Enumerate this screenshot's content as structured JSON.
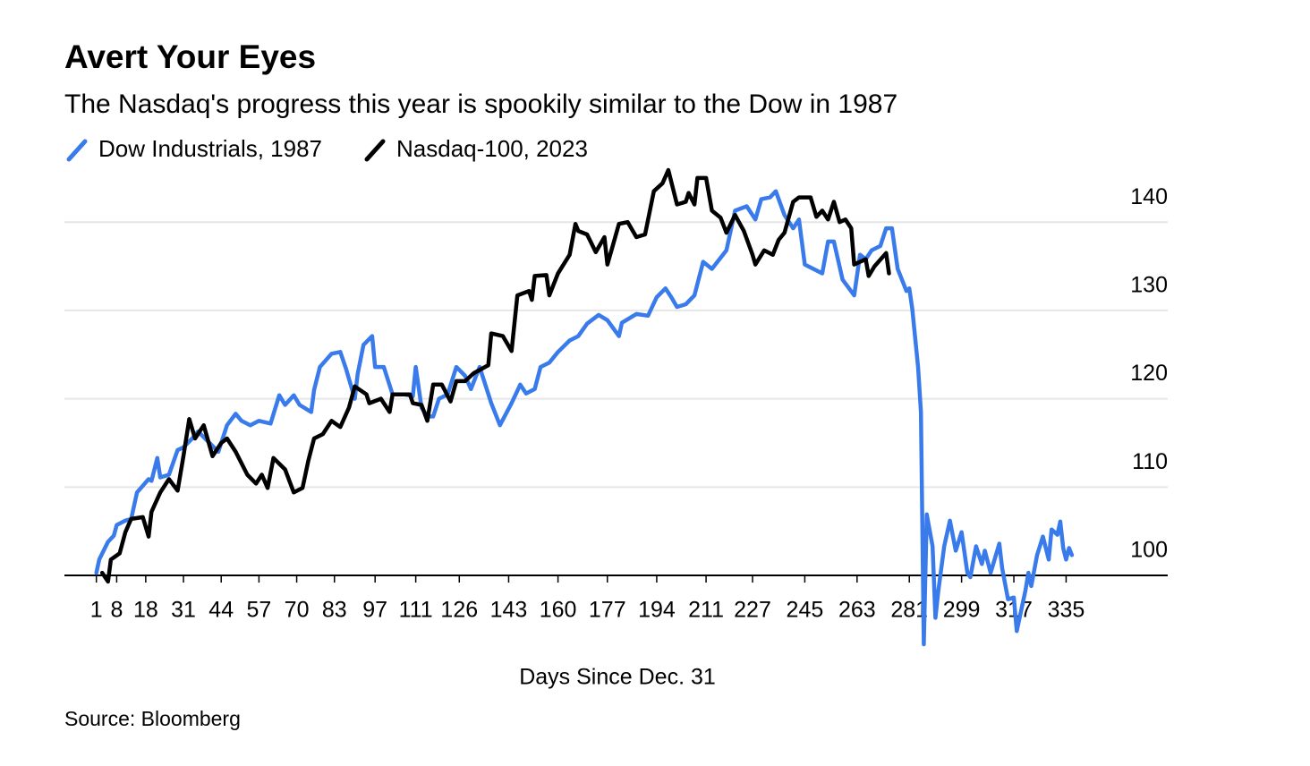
{
  "chart_data": {
    "type": "line",
    "title": "Avert Your Eyes",
    "subtitle": "The Nasdaq's progress this year is spookily similar to the Dow in 1987",
    "x_label": "Days Since Dec. 31",
    "source": "Source: Bloomberg",
    "xlim": [
      -10,
      370
    ],
    "xticks": [
      1,
      8,
      18,
      31,
      44,
      57,
      70,
      83,
      97,
      111,
      126,
      143,
      160,
      177,
      194,
      211,
      227,
      245,
      263,
      281,
      299,
      317,
      335
    ],
    "ylim": [
      92,
      146
    ],
    "yticks": [
      100,
      110,
      120,
      130,
      140
    ],
    "grid": true,
    "series": [
      {
        "name": "Dow Industrials, 1987",
        "color": "#3a7bec",
        "x": [
          1,
          2,
          5,
          7,
          8,
          11,
          13,
          15,
          19,
          20,
          22,
          23,
          26,
          29,
          31,
          34,
          36,
          40,
          43,
          46,
          49,
          51,
          54,
          57,
          61,
          64,
          66,
          69,
          71,
          75,
          76,
          78,
          82,
          85,
          87,
          90,
          91,
          93,
          96,
          97,
          100,
          103,
          107,
          110,
          111,
          113,
          115,
          117,
          119,
          122,
          125,
          128,
          130,
          133,
          134,
          137,
          140,
          144,
          147,
          149,
          152,
          154,
          157,
          160,
          164,
          167,
          170,
          174,
          177,
          181,
          182,
          187,
          191,
          194,
          197,
          199,
          201,
          204,
          207,
          210,
          213,
          218,
          221,
          225,
          228,
          230,
          233,
          235,
          238,
          241,
          243,
          245,
          251,
          253,
          255,
          258,
          262,
          264,
          266,
          268,
          271,
          273,
          275,
          277,
          280,
          281,
          282,
          284,
          285,
          286,
          287,
          289,
          290,
          291,
          293,
          295,
          297,
          299,
          301,
          302,
          304,
          306,
          307,
          309,
          312,
          313,
          315,
          317,
          318,
          321,
          322,
          323,
          325,
          327,
          329,
          330,
          332,
          333,
          334,
          335,
          336,
          337
        ],
        "values": [
          100.3,
          101.8,
          103.8,
          104.5,
          105.7,
          106.2,
          106.4,
          109.4,
          110.9,
          110.7,
          113.3,
          111.1,
          111.4,
          114.2,
          114.5,
          115.5,
          116.3,
          115,
          114,
          117,
          118.3,
          117.5,
          117,
          117.5,
          117.2,
          120.4,
          119.3,
          120.4,
          119.3,
          118.5,
          121,
          123.6,
          125.1,
          125.3,
          123.4,
          120,
          122.8,
          126.1,
          127.1,
          123.6,
          123.6,
          120.5,
          120.5,
          120.3,
          123.6,
          119,
          118,
          118,
          120,
          120.5,
          123.6,
          122.6,
          121.1,
          123.6,
          122.6,
          119.5,
          117,
          119.5,
          121.6,
          120.6,
          121.1,
          123.6,
          124.1,
          125.3,
          126.6,
          127.1,
          128.5,
          129.5,
          128.9,
          127.1,
          128.6,
          129.6,
          129.4,
          131.5,
          132.5,
          131.5,
          130.4,
          130.7,
          131.7,
          135.5,
          134.7,
          136.8,
          141.3,
          141.8,
          140.3,
          142.6,
          142.8,
          143.5,
          140.8,
          139.3,
          140.3,
          135.2,
          134.2,
          137.8,
          137.8,
          133.5,
          131.7,
          136.3,
          135.8,
          136.8,
          137.3,
          139.3,
          139.3,
          134.7,
          132.2,
          132.5,
          130.2,
          123.6,
          118.5,
          92.2,
          106.9,
          103.3,
          95.2,
          98.3,
          103.3,
          106.2,
          102.8,
          104.9,
          100.3,
          99.8,
          103.3,
          101.3,
          102.8,
          100.3,
          103.6,
          100.8,
          97.3,
          97.5,
          93.7,
          98.3,
          100.3,
          98.8,
          102.3,
          104.4,
          101.8,
          105.2,
          104.6,
          106.1,
          103.1,
          101.8,
          103.1,
          102.3
        ]
      },
      {
        "name": "Nasdaq-100, 2023",
        "color": "#000000",
        "x": [
          3,
          5,
          6,
          9,
          11,
          13,
          17,
          19,
          20,
          23,
          26,
          29,
          31,
          33,
          35,
          38,
          41,
          44,
          46,
          49,
          53,
          56,
          58,
          60,
          62,
          66,
          69,
          72,
          74,
          76,
          79,
          82,
          85,
          88,
          90,
          94,
          95,
          99,
          102,
          103,
          109,
          110,
          113,
          115,
          117,
          120,
          123,
          125,
          128,
          131,
          136,
          137,
          141,
          144,
          146,
          150,
          151,
          152,
          156,
          157,
          160,
          164,
          166,
          167,
          170,
          173,
          176,
          177,
          179,
          181,
          184,
          187,
          190,
          193,
          196,
          198,
          201,
          204,
          205,
          207,
          208,
          211,
          213,
          216,
          218,
          221,
          224,
          227,
          228,
          231,
          234,
          236,
          238,
          241,
          243,
          247,
          249,
          251,
          253,
          255,
          257,
          259,
          261,
          262,
          264,
          266,
          267,
          269,
          273,
          274
        ],
        "values": [
          100.3,
          99.3,
          101.8,
          102.5,
          104.9,
          106.4,
          106.6,
          104.4,
          107.2,
          109.4,
          110.9,
          109.6,
          113.5,
          117.7,
          115.5,
          117,
          113.5,
          115,
          115.5,
          114,
          111.4,
          110.4,
          111.4,
          109.9,
          113.3,
          112,
          109.4,
          109.9,
          113,
          115.5,
          116,
          117.5,
          116.8,
          119,
          121.4,
          120.5,
          119.5,
          120,
          118.5,
          120.5,
          120.5,
          119.5,
          119.3,
          117.5,
          121.6,
          121.6,
          119.7,
          122,
          122,
          122.9,
          123.8,
          127.4,
          127.1,
          125.4,
          131.7,
          132.2,
          131.2,
          133.9,
          134,
          131.7,
          134.2,
          136.3,
          139.8,
          139,
          138.6,
          136.6,
          138.3,
          135.2,
          137.5,
          139.8,
          140,
          138.3,
          138.6,
          143.5,
          144.4,
          145.9,
          142,
          142.3,
          143.3,
          142,
          145,
          145,
          141.3,
          140.5,
          138.8,
          140.8,
          139,
          136.3,
          135.2,
          136.8,
          136.3,
          138,
          138.8,
          142.3,
          142.8,
          142.8,
          140.6,
          141.3,
          140.3,
          142.3,
          140,
          140.3,
          139.3,
          135.2,
          135.5,
          135.8,
          133.9,
          135,
          136.5,
          134.2
        ]
      }
    ]
  }
}
